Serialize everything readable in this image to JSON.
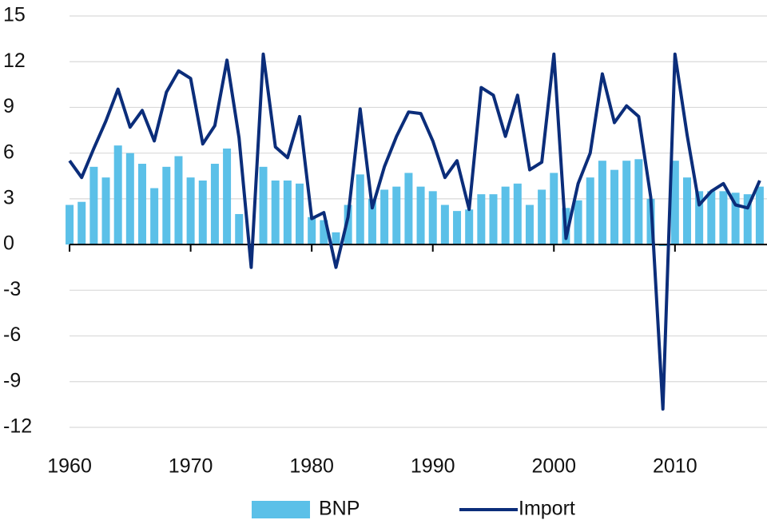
{
  "chart_data": {
    "type": "bar_line",
    "x": [
      1960,
      1961,
      1962,
      1963,
      1964,
      1965,
      1966,
      1967,
      1968,
      1969,
      1970,
      1971,
      1972,
      1973,
      1974,
      1975,
      1976,
      1977,
      1978,
      1979,
      1980,
      1981,
      1982,
      1983,
      1984,
      1985,
      1986,
      1987,
      1988,
      1989,
      1990,
      1991,
      1992,
      1993,
      1994,
      1995,
      1996,
      1997,
      1998,
      1999,
      2000,
      2001,
      2002,
      2003,
      2004,
      2005,
      2006,
      2007,
      2008,
      2009,
      2010,
      2011,
      2012,
      2013,
      2014,
      2015,
      2016,
      2017
    ],
    "series": [
      {
        "name": "BNP",
        "kind": "bar",
        "color": "#5bc0e8",
        "values": [
          2.6,
          2.8,
          5.1,
          4.4,
          6.5,
          6.0,
          5.3,
          3.7,
          5.1,
          5.8,
          4.4,
          4.2,
          5.3,
          6.3,
          2.0,
          0.0,
          5.1,
          4.2,
          4.2,
          4.0,
          1.8,
          1.6,
          0.8,
          2.6,
          4.6,
          3.0,
          3.6,
          3.8,
          4.7,
          3.8,
          3.5,
          2.6,
          2.2,
          2.3,
          3.3,
          3.3,
          3.8,
          4.0,
          2.6,
          3.6,
          4.7,
          2.4,
          2.9,
          4.4,
          5.5,
          4.9,
          5.5,
          5.6,
          3.0,
          -0.1,
          5.5,
          4.4,
          3.5,
          3.5,
          3.5,
          3.4,
          3.3,
          3.8
        ]
      },
      {
        "name": "Import",
        "kind": "line",
        "color": "#0b2d7a",
        "values": [
          5.5,
          4.4,
          6.3,
          8.1,
          10.2,
          7.7,
          8.8,
          6.8,
          10.0,
          11.4,
          10.9,
          6.6,
          7.8,
          12.1,
          7.0,
          -1.5,
          12.5,
          6.4,
          5.7,
          8.4,
          1.7,
          2.1,
          -1.5,
          1.8,
          8.9,
          2.4,
          5.1,
          7.1,
          8.7,
          8.6,
          6.8,
          4.4,
          5.5,
          2.3,
          10.3,
          9.8,
          7.1,
          9.8,
          4.9,
          5.4,
          12.5,
          0.4,
          4.0,
          6.0,
          11.2,
          8.0,
          9.1,
          8.4,
          3.1,
          -10.8,
          12.5,
          7.2,
          2.6,
          3.5,
          4.0,
          2.6,
          2.4,
          4.2
        ]
      }
    ],
    "xlim": [
      1959.6,
      2017.6
    ],
    "xticks": [
      1960,
      1970,
      1980,
      1990,
      2000,
      2010
    ],
    "ylim": [
      -12,
      15
    ],
    "yticks": [
      -12,
      -9,
      -6,
      -3,
      0,
      3,
      6,
      9,
      12,
      15
    ],
    "grid": true,
    "legend": "bottom"
  }
}
